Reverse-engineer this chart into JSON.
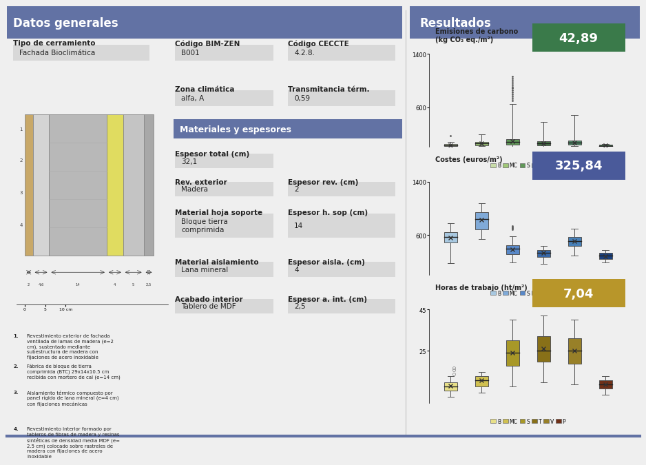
{
  "title_left": "Datos generales",
  "title_right": "Resultados",
  "header_color": "#6272a4",
  "header_text_color": "#ffffff",
  "bg_color": "#efefef",
  "field_bg": "#d8d8d8",
  "tipo_cerramiento_label": "Tipo de cerramiento",
  "tipo_cerramiento_value": "Fachada Bioclimática",
  "codigo_bimzen_label": "Código BIM-ZEN",
  "codigo_bimzen_value": "B001",
  "codigo_ceccte_label": "Código CECCTE",
  "codigo_ceccte_value": "4.2.8.",
  "zona_label": "Zona climática",
  "zona_value": "alfa, A",
  "transmitancia_label": "Transmitancia térm.",
  "transmitancia_value": "0,59",
  "materiales_title": "Materiales y espesores",
  "espesor_total_label": "Espesor total (cm)",
  "espesor_total_value": "32,1",
  "rev_exterior_label": "Rev. exterior",
  "rev_exterior_value": "Madera",
  "espesor_rev_label": "Espesor rev. (cm)",
  "espesor_rev_value": "2",
  "material_hoja_label": "Material hoja soporte",
  "material_hoja_value": "Bloque tierra\ncomprimida",
  "espesor_hoja_label": "Espesor h. sop (cm)",
  "espesor_hoja_value": "14",
  "material_aisla_label": "Material aislamiento",
  "material_aisla_value": "Lana mineral",
  "espesor_aisla_label": "Espesor aisla. (cm)",
  "espesor_aisla_value": "4",
  "acabado_label": "Acabado interior",
  "acabado_value": "Tablero de MDF",
  "espesor_aint_label": "Espesor a. int. (cm)",
  "espesor_aint_value": "2,5",
  "notes": [
    "Revestimiento exterior de fachada\nventilada de lamas de madera (e=2\ncm), sustentado mediante\nsubestructura de madera con\nfijaciones de acero inoxidable",
    "Fábrica de bloque de tierra\ncomprimida (BTC) 29x14x10.5 cm\nrecibida con mortero de cal (e=14 cm)",
    "Aislamiento térmico compuesto por\npanel rígido de lana mineral (e=4 cm)\ncon fijaciones mecánicas",
    "Revestimiento interior formado por\ntableros de fibras de madera y resinas\nsintéticas de densidad media MDF (e=\n2.5 cm) colocado sobre rastreles de\nmadera con fijaciones de acero\ninoxidable"
  ],
  "carbon_title": "Emisiones de carbono\n(kg CO₂ eq./m²)",
  "carbon_value": "42,89",
  "carbon_value_bg": "#3a7a4a",
  "costes_title": "Costes (euros/m²)",
  "costes_value": "325,84",
  "costes_value_bg": "#4a5a9a",
  "horas_title": "Horas de trabajo (ht/m²)",
  "horas_value": "7,04",
  "horas_value_bg": "#b8962a",
  "categories": [
    "B",
    "MC",
    "S",
    "T",
    "V",
    "P"
  ],
  "carbon_colors": [
    "#c8dca8",
    "#a0c878",
    "#609858",
    "#487848",
    "#508868",
    "#305838"
  ],
  "costes_colors": [
    "#a8c8e0",
    "#80aad8",
    "#5888c8",
    "#3868a8",
    "#4880b8",
    "#1a4080"
  ],
  "horas_colors": [
    "#e8e088",
    "#d0c050",
    "#a89828",
    "#887018",
    "#988028",
    "#703018"
  ],
  "carbon_box_data": {
    "B": {
      "q1": 20,
      "median": 28,
      "q3": 48,
      "whislo": 8,
      "whishi": 75,
      "mean": 30,
      "fliers_high": [
        175
      ],
      "fliers_low": []
    },
    "MC": {
      "q1": 25,
      "median": 55,
      "q3": 75,
      "whislo": 12,
      "whishi": 190,
      "mean": 52,
      "fliers_high": [],
      "fliers_low": []
    },
    "S": {
      "q1": 40,
      "median": 75,
      "q3": 115,
      "whislo": 8,
      "whishi": 650,
      "mean": 85,
      "fliers_high": [
        700,
        730,
        760,
        790,
        820,
        850,
        880,
        910,
        940,
        970,
        1000,
        1030,
        1060
      ],
      "fliers_low": []
    },
    "T": {
      "q1": 28,
      "median": 58,
      "q3": 85,
      "whislo": 8,
      "whishi": 380,
      "mean": 62,
      "fliers_high": [],
      "fliers_low": []
    },
    "V": {
      "q1": 38,
      "median": 65,
      "q3": 95,
      "whislo": 12,
      "whishi": 480,
      "mean": 68,
      "fliers_high": [],
      "fliers_low": []
    },
    "P": {
      "q1": 8,
      "median": 20,
      "q3": 32,
      "whislo": 3,
      "whishi": 45,
      "mean": 22,
      "fliers_high": [],
      "fliers_low": []
    }
  },
  "costes_box_data": {
    "B": {
      "q1": 490,
      "median": 570,
      "q3": 640,
      "whislo": 180,
      "whishi": 780,
      "mean": 560,
      "fliers_high": [],
      "fliers_low": []
    },
    "MC": {
      "q1": 680,
      "median": 840,
      "q3": 940,
      "whislo": 540,
      "whishi": 1080,
      "mean": 830,
      "fliers_high": [],
      "fliers_low": []
    },
    "S": {
      "q1": 310,
      "median": 390,
      "q3": 445,
      "whislo": 190,
      "whishi": 580,
      "mean": 385,
      "fliers_high": [
        680,
        700,
        720,
        740
      ],
      "fliers_low": []
    },
    "T": {
      "q1": 270,
      "median": 330,
      "q3": 375,
      "whislo": 170,
      "whishi": 440,
      "mean": 328,
      "fliers_high": [],
      "fliers_low": []
    },
    "V": {
      "q1": 440,
      "median": 510,
      "q3": 570,
      "whislo": 290,
      "whishi": 690,
      "mean": 505,
      "fliers_high": [],
      "fliers_low": []
    },
    "P": {
      "q1": 240,
      "median": 290,
      "q3": 330,
      "whislo": 190,
      "whishi": 370,
      "mean": 285,
      "fliers_high": [],
      "fliers_low": []
    }
  },
  "horas_box_data": {
    "B": {
      "q1": 6,
      "median": 8,
      "q3": 10,
      "whislo": 3,
      "whishi": 13,
      "mean": 8.2,
      "fliers_high": [],
      "fliers_low": [
        14,
        16,
        17
      ]
    },
    "MC": {
      "q1": 8,
      "median": 11,
      "q3": 13,
      "whislo": 5,
      "whishi": 15,
      "mean": 11,
      "fliers_high": [],
      "fliers_low": []
    },
    "S": {
      "q1": 18,
      "median": 24,
      "q3": 30,
      "whislo": 8,
      "whishi": 40,
      "mean": 24,
      "fliers_high": [],
      "fliers_low": []
    },
    "T": {
      "q1": 20,
      "median": 25,
      "q3": 32,
      "whislo": 10,
      "whishi": 42,
      "mean": 26,
      "fliers_high": [],
      "fliers_low": []
    },
    "V": {
      "q1": 19,
      "median": 25,
      "q3": 31,
      "whislo": 9,
      "whishi": 40,
      "mean": 25,
      "fliers_high": [],
      "fliers_low": []
    },
    "P": {
      "q1": 7,
      "median": 9,
      "q3": 11,
      "whislo": 4,
      "whishi": 13,
      "mean": 9,
      "fliers_high": [],
      "fliers_low": []
    }
  }
}
